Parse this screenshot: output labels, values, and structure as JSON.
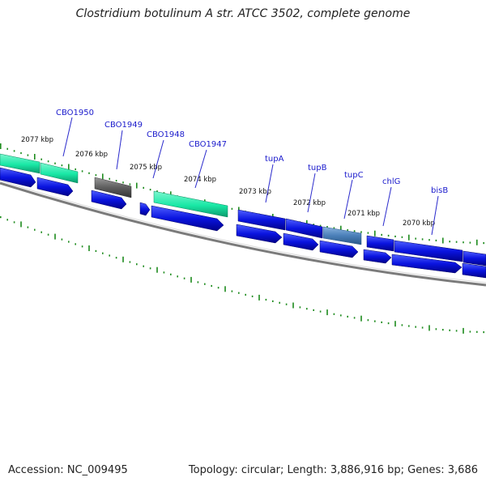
{
  "title": "Clostridium botulinum A str. ATCC 3502, complete genome",
  "footer": {
    "accession": "Accession: NC_009495",
    "stats": "Topology: circular; Length: 3,886,916 bp; Genes: 3,686"
  },
  "colors": {
    "cds": "#0a14e0",
    "rna": "#19e8a6",
    "pseudo": "#5e5e5e",
    "selected": "#4a7fb8",
    "backbone": "#7b7b7b",
    "tick": "#1e8c1e",
    "gene_label": "#1a1acc"
  },
  "kbp_labels": [
    "2077 kbp",
    "2076 kbp",
    "2075 kbp",
    "2074 kbp",
    "2073 kbp",
    "2072 kbp",
    "2071 kbp",
    "2070 kbp"
  ],
  "gene_labels": [
    "CBO1950",
    "CBO1949",
    "CBO1948",
    "CBO1947",
    "tupA",
    "tupB",
    "tupC",
    "chlG",
    "bisB"
  ]
}
